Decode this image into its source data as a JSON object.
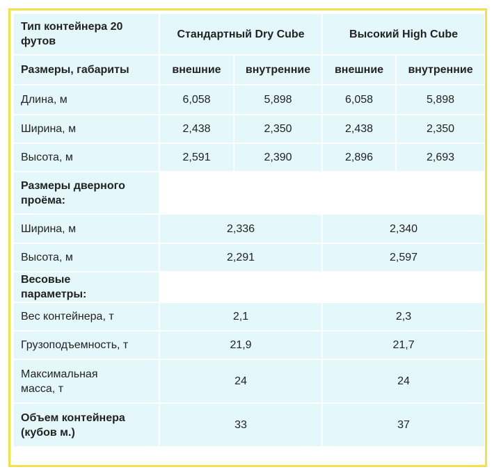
{
  "header": {
    "label": "Тип контейнера 20 футов",
    "columns": [
      "Стандартный Dry Cube",
      "Высокий High Cube"
    ]
  },
  "dimensions": {
    "label": "Размеры, габариты",
    "subcolumns": [
      "внешние",
      "внутренние",
      "внешние",
      "внутренние"
    ],
    "rows": [
      {
        "label": "Длина, м",
        "values": [
          "6,058",
          "5,898",
          "6,058",
          "5,898"
        ]
      },
      {
        "label": "Ширина, м",
        "values": [
          "2,438",
          "2,350",
          "2,438",
          "2,350"
        ]
      },
      {
        "label": "Высота, м",
        "values": [
          "2,591",
          "2,390",
          "2,896",
          "2,693"
        ]
      }
    ]
  },
  "door": {
    "label": "Размеры дверного проёма:",
    "rows": [
      {
        "label": "Ширина, м",
        "values": [
          "2,336",
          "2,340"
        ]
      },
      {
        "label": "Высота, м",
        "values": [
          "2,291",
          "2,597"
        ]
      }
    ]
  },
  "weight": {
    "label": "Весовые параметры:",
    "rows": [
      {
        "label": "Вес контейнера, т",
        "values": [
          "2,1",
          "2,3"
        ]
      },
      {
        "label": "Грузоподъемность, т",
        "values": [
          "21,9",
          "21,7"
        ]
      },
      {
        "label": "Максимальная масса, т",
        "values": [
          "24",
          "24"
        ]
      }
    ]
  },
  "volume": {
    "label": "Объем контейнера (кубов м.)",
    "values": [
      "33",
      "37"
    ]
  }
}
